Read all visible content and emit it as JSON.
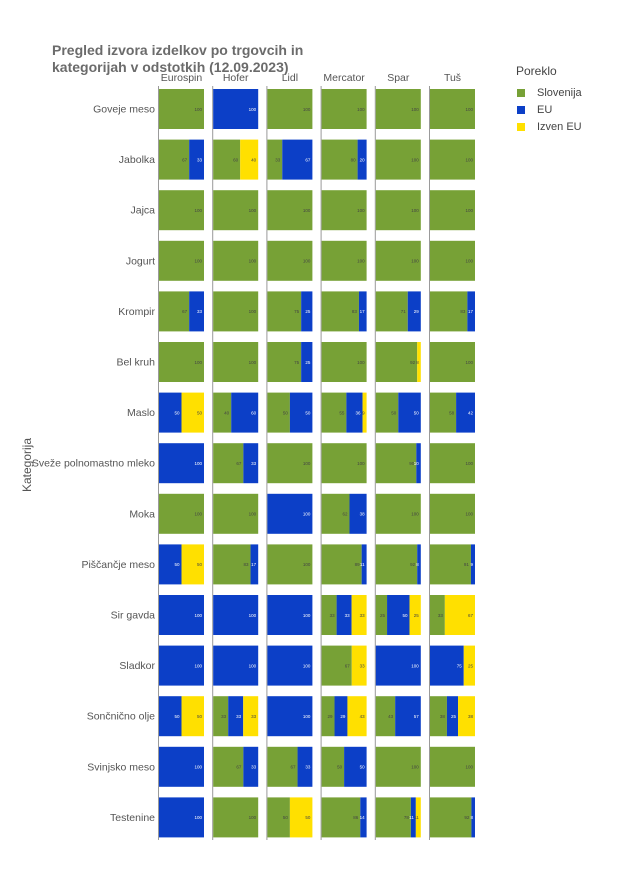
{
  "chart_data": {
    "type": "bar",
    "orientation": "horizontal",
    "stacked": true,
    "normalized": true,
    "title": "Pregled izvora izdelkov po trgovcih in kategorijah v odstotkih (12.09.2023)",
    "ylabel": "Kategorija",
    "legend_title": "Poreklo",
    "legend_position": "top-right",
    "colors": {
      "Slovenija": "#77a136",
      "EU": "#0c3fc7",
      "Izven EU": "#ffe000"
    },
    "series_names": [
      "Slovenija",
      "EU",
      "Izven EU"
    ],
    "stores": [
      "Eurospin",
      "Hofer",
      "Lidl",
      "Mercator",
      "Spar",
      "Tuš"
    ],
    "categories": [
      "Goveje meso",
      "Jabolka",
      "Jajca",
      "Jogurt",
      "Krompir",
      "Bel kruh",
      "Maslo",
      "Sveže polnomastno mleko",
      "Moka",
      "Piščančje meso",
      "Sir gavda",
      "Sladkor",
      "Sončnično olje",
      "Svinjsko meso",
      "Testenine"
    ],
    "values": {
      "Eurospin": [
        [
          100,
          0,
          0
        ],
        [
          67,
          33,
          0
        ],
        [
          100,
          0,
          0
        ],
        [
          100,
          0,
          0
        ],
        [
          67,
          33,
          0
        ],
        [
          100,
          0,
          0
        ],
        [
          0,
          50,
          50
        ],
        [
          0,
          100,
          0
        ],
        [
          100,
          0,
          0
        ],
        [
          0,
          50,
          50
        ],
        [
          0,
          100,
          0
        ],
        [
          0,
          100,
          0
        ],
        [
          0,
          50,
          50
        ],
        [
          0,
          100,
          0
        ],
        [
          0,
          100,
          0
        ]
      ],
      "Hofer": [
        [
          0,
          100,
          0
        ],
        [
          60,
          0,
          40
        ],
        [
          100,
          0,
          0
        ],
        [
          100,
          0,
          0
        ],
        [
          100,
          0,
          0
        ],
        [
          100,
          0,
          0
        ],
        [
          40,
          60,
          0
        ],
        [
          67,
          33,
          0
        ],
        [
          100,
          0,
          0
        ],
        [
          83,
          17,
          0
        ],
        [
          0,
          100,
          0
        ],
        [
          0,
          100,
          0
        ],
        [
          33,
          33,
          33
        ],
        [
          67,
          33,
          0
        ],
        [
          100,
          0,
          0
        ]
      ],
      "Lidl": [
        [
          100,
          0,
          0
        ],
        [
          33,
          67,
          0
        ],
        [
          100,
          0,
          0
        ],
        [
          100,
          0,
          0
        ],
        [
          75,
          25,
          0
        ],
        [
          75,
          25,
          0
        ],
        [
          50,
          50,
          0
        ],
        [
          100,
          0,
          0
        ],
        [
          0,
          100,
          0
        ],
        [
          100,
          0,
          0
        ],
        [
          0,
          100,
          0
        ],
        [
          0,
          100,
          0
        ],
        [
          0,
          100,
          0
        ],
        [
          67,
          33,
          0
        ],
        [
          50,
          0,
          50
        ]
      ],
      "Mercator": [
        [
          100,
          0,
          0
        ],
        [
          80,
          20,
          0
        ],
        [
          100,
          0,
          0
        ],
        [
          100,
          0,
          0
        ],
        [
          83,
          17,
          0
        ],
        [
          100,
          0,
          0
        ],
        [
          55,
          36,
          9
        ],
        [
          100,
          0,
          0
        ],
        [
          62,
          38,
          0
        ],
        [
          89,
          11,
          0
        ],
        [
          33,
          33,
          33
        ],
        [
          67,
          0,
          33
        ],
        [
          29,
          29,
          43
        ],
        [
          50,
          50,
          0
        ],
        [
          86,
          14,
          0
        ]
      ],
      "Spar": [
        [
          100,
          0,
          0
        ],
        [
          100,
          0,
          0
        ],
        [
          100,
          0,
          0
        ],
        [
          100,
          0,
          0
        ],
        [
          71,
          29,
          0
        ],
        [
          92,
          0,
          8
        ],
        [
          50,
          50,
          0
        ],
        [
          90,
          10,
          0
        ],
        [
          100,
          0,
          0
        ],
        [
          92,
          8,
          0
        ],
        [
          25,
          50,
          25
        ],
        [
          0,
          100,
          0
        ],
        [
          43,
          57,
          0
        ],
        [
          100,
          0,
          0
        ],
        [
          78,
          11,
          11
        ]
      ],
      "Tuš": [
        [
          100,
          0,
          0
        ],
        [
          100,
          0,
          0
        ],
        [
          100,
          0,
          0
        ],
        [
          100,
          0,
          0
        ],
        [
          83,
          17,
          0
        ],
        [
          100,
          0,
          0
        ],
        [
          58,
          42,
          0
        ],
        [
          100,
          0,
          0
        ],
        [
          100,
          0,
          0
        ],
        [
          91,
          9,
          0
        ],
        [
          33,
          0,
          67
        ],
        [
          0,
          75,
          25
        ],
        [
          38,
          25,
          38
        ],
        [
          100,
          0,
          0
        ],
        [
          92,
          8,
          0
        ]
      ]
    }
  }
}
